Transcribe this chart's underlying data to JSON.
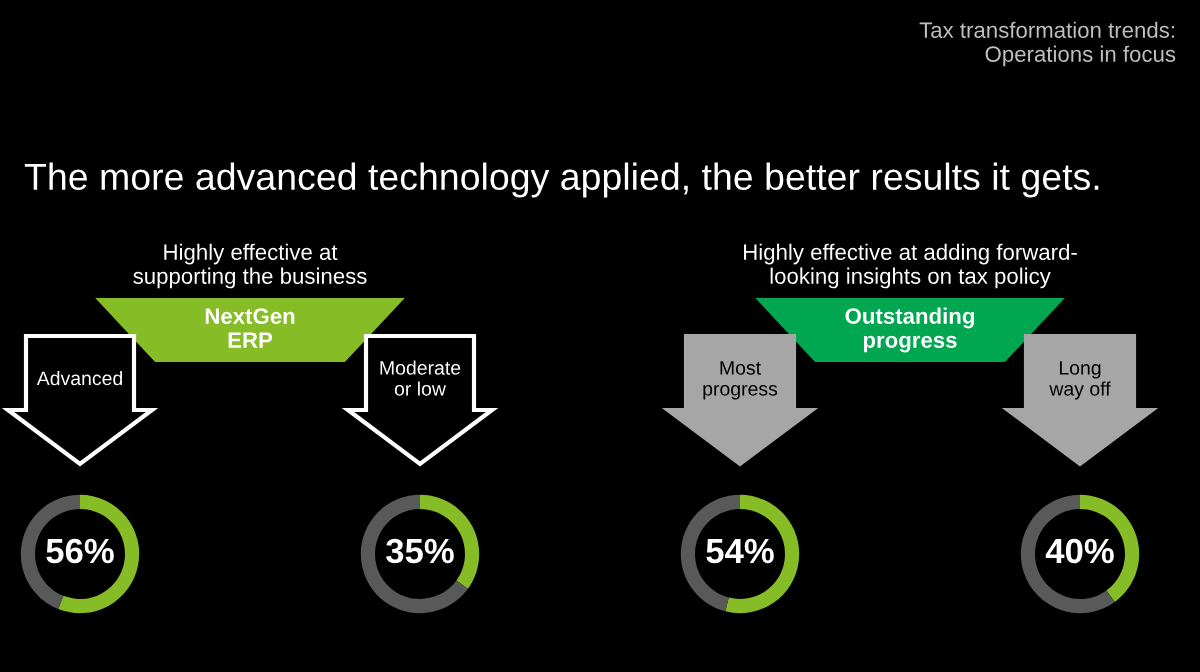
{
  "chart_data": [
    {
      "type": "other",
      "title": "The more advanced technology applied, the better results it gets.",
      "annotations": [
        "Tax transformation trends:\nOperations in focus"
      ]
    },
    {
      "type": "donut",
      "categories": [
        null,
        null
      ],
      "values": [
        56,
        44
      ],
      "colors": [
        "#86bc25",
        "#595959"
      ],
      "value_labels": [
        "56%",
        null
      ],
      "annotations": [
        "Highly effective at\nsupporting the business",
        "NextGen\nERP",
        "Advanced"
      ]
    },
    {
      "type": "donut",
      "categories": [
        null,
        null
      ],
      "values": [
        35,
        65
      ],
      "colors": [
        "#86bc25",
        "#595959"
      ],
      "value_labels": [
        "35%",
        null
      ],
      "annotations": [
        "Moderate\nor low"
      ]
    },
    {
      "type": "donut",
      "categories": [
        null,
        null
      ],
      "values": [
        54,
        46
      ],
      "colors": [
        "#86bc25",
        "#595959"
      ],
      "value_labels": [
        "54%",
        null
      ],
      "annotations": [
        "Highly effective at adding forward-\nlooking insights on tax policy",
        "Outstanding\nprogress",
        "Most\nprogress"
      ]
    },
    {
      "type": "donut",
      "categories": [
        null,
        null
      ],
      "values": [
        40,
        60
      ],
      "colors": [
        "#86bc25",
        "#595959"
      ],
      "value_labels": [
        "40%",
        null
      ],
      "annotations": [
        "Long\nway off"
      ]
    }
  ]
}
